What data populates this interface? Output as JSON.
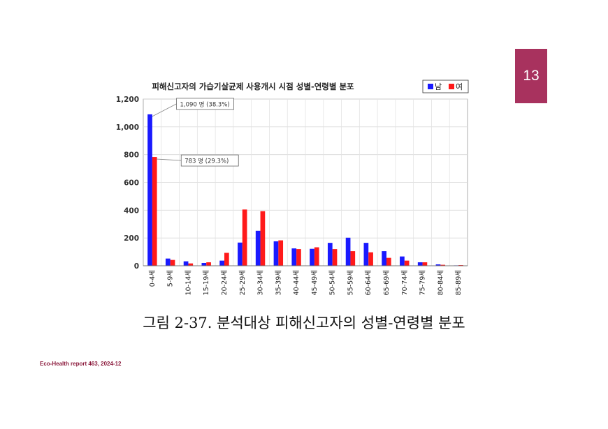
{
  "page_number": "13",
  "caption": "그림 2-37. 분석대상 피해신고자의 성별-연령별 분포",
  "footer": "Eco-Health report 463, 2024-12",
  "colors": {
    "male": "#1a1aff",
    "female": "#ff1a1a",
    "accent": "#a8325e"
  },
  "chart_data": {
    "type": "bar",
    "title": "피해신고자의 가습기살균제 사용개시 시점 성별-연령별 분포",
    "categories": [
      "0-4세",
      "5-9세",
      "10-14세",
      "15-19세",
      "20-24세",
      "25-29세",
      "30-34세",
      "35-39세",
      "40-44세",
      "45-49세",
      "50-54세",
      "55-59세",
      "60-64세",
      "65-69세",
      "70-74세",
      "75-79세",
      "80-84세",
      "85-89세"
    ],
    "series": [
      {
        "name": "남",
        "values": [
          1090,
          52,
          32,
          20,
          37,
          167,
          252,
          176,
          125,
          122,
          165,
          202,
          165,
          105,
          67,
          25,
          10,
          3
        ]
      },
      {
        "name": "여",
        "values": [
          783,
          42,
          17,
          25,
          93,
          405,
          393,
          183,
          120,
          133,
          120,
          105,
          97,
          57,
          37,
          25,
          7,
          5
        ]
      }
    ],
    "ylim": [
      0,
      1200
    ],
    "yticks": [
      "0",
      "200",
      "400",
      "600",
      "800",
      "1,000",
      "1,200"
    ],
    "ytick_values": [
      0,
      200,
      400,
      600,
      800,
      1000,
      1200
    ],
    "grid": true,
    "legend": "top-right",
    "annotations": [
      {
        "text": "1,090 명 (38.3%)",
        "series": 0,
        "category": 0
      },
      {
        "text": "783 명 (29.3%)",
        "series": 1,
        "category": 0
      }
    ]
  }
}
